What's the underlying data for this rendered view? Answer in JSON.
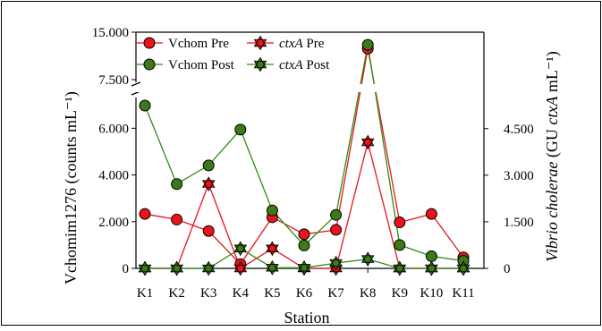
{
  "colors": {
    "pre": "#e8141a",
    "post": "#2e8b16",
    "pre_marker_fill": "#e8141a",
    "post_marker_fill": "#3a7a17"
  },
  "chart_data": {
    "type": "line",
    "xlabel": "Station",
    "ylabel_left": "Vchomim1276 (counts mL⁻¹)",
    "ylabel_right_italic": "Vibrio cholerae",
    "ylabel_right_rest": " (GU ",
    "ylabel_right_italic2": "ctxA",
    "ylabel_right_end": " mL⁻¹)",
    "categories": [
      "K1",
      "K2",
      "K3",
      "K4",
      "K5",
      "K6",
      "K7",
      "K8",
      "K9",
      "K10",
      "K11"
    ],
    "left_axis": {
      "lower_ticks": [
        0,
        2000,
        4000,
        6000
      ],
      "lower_tick_labels": [
        "0",
        "2.000",
        "4.000",
        "6.000"
      ],
      "upper_ticks": [
        7500,
        15000
      ],
      "upper_tick_labels": [
        "7.500",
        "15.000"
      ],
      "lower_range": [
        0,
        7200
      ],
      "upper_range": [
        7500,
        15000
      ],
      "scale": "broken"
    },
    "right_axis": {
      "ticks": [
        0,
        1500,
        3000,
        4500
      ],
      "tick_labels": [
        "0",
        "1.500",
        "3.000",
        "4.500"
      ],
      "range": [
        0,
        5300
      ]
    },
    "series": [
      {
        "name": "Vchom Pre",
        "axis": "left",
        "marker": "circle",
        "color": "pre",
        "values": [
          2330,
          2090,
          1600,
          180,
          2190,
          1460,
          1650,
          12400,
          1970,
          2330,
          470
        ]
      },
      {
        "name": "Vchom Post",
        "axis": "left",
        "marker": "circle",
        "color": "post",
        "values": [
          6970,
          3610,
          4410,
          5940,
          2480,
          980,
          2290,
          13000,
          1000,
          520,
          320
        ]
      },
      {
        "name": "ctxA Pre",
        "axis": "right",
        "marker": "star",
        "color": "pre",
        "values": [
          0,
          0,
          2720,
          0,
          640,
          0,
          0,
          4060,
          0,
          0,
          0
        ]
      },
      {
        "name": "ctxA Post",
        "axis": "right",
        "marker": "star",
        "color": "post",
        "values": [
          0,
          0,
          0,
          640,
          20,
          20,
          170,
          300,
          0,
          0,
          0
        ]
      }
    ],
    "legend": {
      "entries": [
        {
          "label": "Vchom Pre",
          "italic_part": "",
          "rest": "Vchom Pre",
          "series": 0
        },
        {
          "label": "ctxA Pre",
          "italic_part": "ctxA",
          "rest": " Pre",
          "series": 2
        },
        {
          "label": "Vchom Post",
          "italic_part": "",
          "rest": "Vchom Post",
          "series": 1
        },
        {
          "label": "ctxA Post",
          "italic_part": "ctxA",
          "rest": " Post",
          "series": 3
        }
      ],
      "placement": "top-left"
    }
  }
}
